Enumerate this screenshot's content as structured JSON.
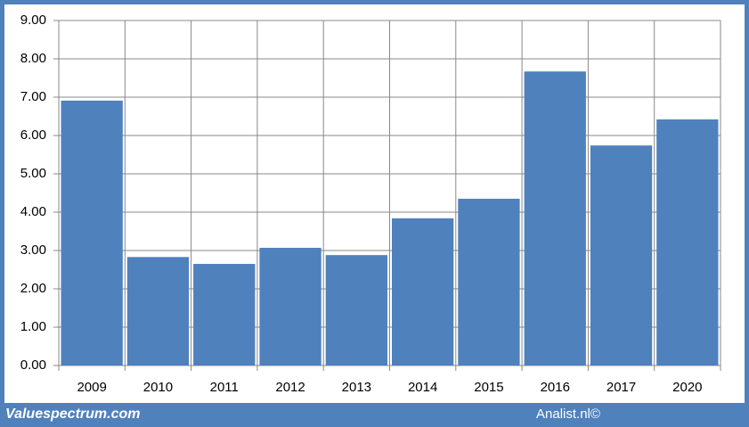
{
  "chart_data": {
    "type": "bar",
    "categories": [
      "2009",
      "2010",
      "2011",
      "2012",
      "2013",
      "2014",
      "2015",
      "2016",
      "2017",
      "2020"
    ],
    "values": [
      6.91,
      2.83,
      2.65,
      3.07,
      2.88,
      3.84,
      4.35,
      7.67,
      5.74,
      6.42
    ],
    "color": "#4f81bd",
    "ylim": [
      0,
      9
    ],
    "yticks": [
      {
        "value": 0,
        "label": "0.00"
      },
      {
        "value": 1,
        "label": "1.00"
      },
      {
        "value": 2,
        "label": "2.00"
      },
      {
        "value": 3,
        "label": "3.00"
      },
      {
        "value": 4,
        "label": "4.00"
      },
      {
        "value": 5,
        "label": "5.00"
      },
      {
        "value": 6,
        "label": "6.00"
      },
      {
        "value": 7,
        "label": "7.00"
      },
      {
        "value": 8,
        "label": "8.00"
      },
      {
        "value": 9,
        "label": "9.00"
      }
    ],
    "grid": true,
    "footer_left": "Valuespectrum.com",
    "footer_right": "Analist.nl©"
  }
}
